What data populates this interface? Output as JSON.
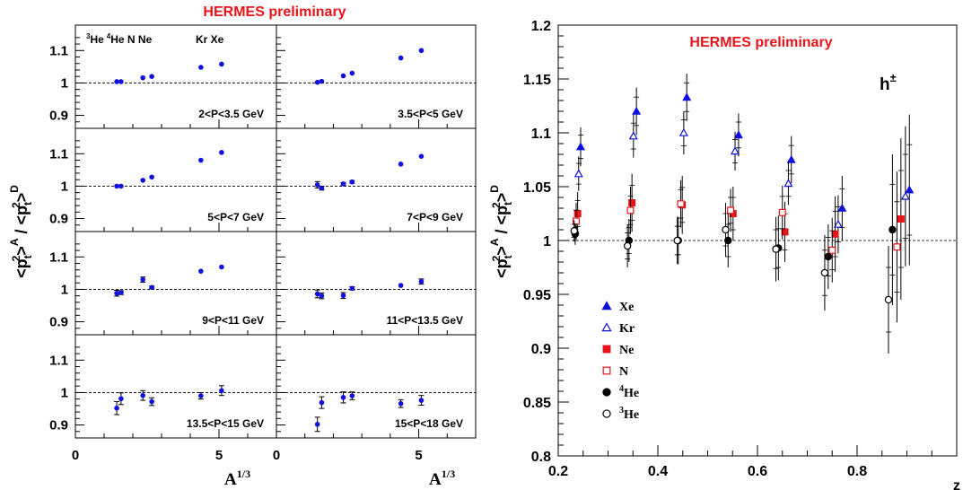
{
  "colors": {
    "prelim": "#e8141a",
    "blue": "#1010e0",
    "red": "#e8141a",
    "black": "#000000",
    "axis": "#000000"
  },
  "left": {
    "prelim_text": "HERMES preliminary",
    "nuclei_label": "Kr Xe",
    "nuclei_label_sup_3": "3",
    "nuclei_label_he3": "He",
    "nuclei_label_sup_4": "4",
    "nuclei_label_rest": "He N Ne",
    "ylabel_parts": [
      "<p",
      "t",
      "2",
      ">",
      "A",
      " / <p",
      "t",
      "2",
      ">",
      "D"
    ],
    "xlabel": "A",
    "xlabel_sup": "1/3",
    "xticks": [
      "0",
      "5"
    ],
    "yticks": [
      "0.9",
      "1",
      "1.1"
    ],
    "xlim": [
      0,
      7
    ],
    "ylim": [
      0.86,
      1.17
    ],
    "panels": [
      {
        "label": "2<P<3.5 GeV",
        "points": [
          [
            1.44,
            1.004,
            0
          ],
          [
            1.59,
            1.004,
            0
          ],
          [
            2.35,
            1.016,
            0
          ],
          [
            2.66,
            1.02,
            0
          ],
          [
            4.37,
            1.048,
            0
          ],
          [
            5.09,
            1.058,
            0
          ]
        ]
      },
      {
        "label": "3.5<P<5 GeV",
        "points": [
          [
            1.44,
            1.002,
            0
          ],
          [
            1.59,
            1.005,
            0
          ],
          [
            2.35,
            1.022,
            0
          ],
          [
            2.66,
            1.03,
            0
          ],
          [
            4.37,
            1.077,
            0
          ],
          [
            5.09,
            1.1,
            0
          ]
        ]
      },
      {
        "label": "5<P<7 GeV",
        "points": [
          [
            1.44,
            1.0,
            0
          ],
          [
            1.59,
            1.0,
            0
          ],
          [
            2.35,
            1.018,
            0
          ],
          [
            2.66,
            1.028,
            0
          ],
          [
            4.37,
            1.08,
            0
          ],
          [
            5.09,
            1.104,
            0
          ]
        ]
      },
      {
        "label": "7<P<9 GeV",
        "points": [
          [
            1.44,
            1.004,
            0.01
          ],
          [
            1.59,
            0.994,
            0.006
          ],
          [
            2.35,
            1.007,
            0.004
          ],
          [
            2.66,
            1.013,
            0.004
          ],
          [
            4.37,
            1.068,
            0
          ],
          [
            5.09,
            1.092,
            0
          ]
        ]
      },
      {
        "label": "9<P<11 GeV",
        "points": [
          [
            1.44,
            0.988,
            0.009
          ],
          [
            1.59,
            0.99,
            0.006
          ],
          [
            2.35,
            1.03,
            0.008
          ],
          [
            2.66,
            1.006,
            0.004
          ],
          [
            4.37,
            1.056,
            0
          ],
          [
            5.09,
            1.069,
            0
          ]
        ]
      },
      {
        "label": "11<P<13.5 GeV",
        "points": [
          [
            1.44,
            0.986,
            0.012
          ],
          [
            1.59,
            0.98,
            0.009
          ],
          [
            2.35,
            0.981,
            0.009
          ],
          [
            2.66,
            1.003,
            0.005
          ],
          [
            4.37,
            1.012,
            0
          ],
          [
            5.09,
            1.024,
            0.008
          ]
        ]
      },
      {
        "label": "13.5<P<15 GeV",
        "points": [
          [
            1.44,
            0.952,
            0.02
          ],
          [
            1.59,
            0.981,
            0.018
          ],
          [
            2.35,
            0.991,
            0.015
          ],
          [
            2.66,
            0.972,
            0.012
          ],
          [
            4.37,
            0.99,
            0.01
          ],
          [
            5.09,
            1.006,
            0.015
          ]
        ]
      },
      {
        "label": "15<P<18 GeV",
        "points": [
          [
            1.44,
            0.902,
            0.022
          ],
          [
            1.59,
            0.969,
            0.018
          ],
          [
            2.35,
            0.985,
            0.017
          ],
          [
            2.66,
            0.99,
            0.012
          ],
          [
            4.37,
            0.966,
            0.012
          ],
          [
            5.09,
            0.976,
            0.015
          ]
        ]
      }
    ]
  },
  "right": {
    "prelim_text": "HERMES preliminary",
    "hadron_label": "h",
    "hadron_sup": "±",
    "ylabel_parts": [
      "<p",
      "t",
      "2",
      ">",
      "A",
      " / <p",
      "t",
      "2",
      ">",
      "D"
    ],
    "xlabel": "z",
    "xticks": [
      "0.2",
      "0.4",
      "0.6",
      "0.8"
    ],
    "yticks": [
      "0.8",
      "0.85",
      "0.9",
      "0.95",
      "1",
      "1.05",
      "1.1",
      "1.15",
      "1.2"
    ],
    "legend": [
      {
        "name": "Xe",
        "marker": "tri-filled"
      },
      {
        "name": "Kr",
        "marker": "tri-open"
      },
      {
        "name": "Ne",
        "marker": "sq-filled"
      },
      {
        "name": "N",
        "marker": "sq-open"
      },
      {
        "name": "He",
        "sup": "4",
        "marker": "circ-filled"
      },
      {
        "name": "He",
        "sup": "3",
        "marker": "circ-open"
      }
    ]
  },
  "chart_data": [
    {
      "type": "scatter",
      "title": "HERMES preliminary",
      "xlabel": "A^1/3",
      "ylabel": "<pt^2>^A / <pt^2>^D",
      "xlim": [
        0,
        7
      ],
      "ylim": [
        0.86,
        1.17
      ],
      "note": "8 panels by hadron momentum P; x = A^(1/3) of He3, He4, N, Ne, Kr, Xe",
      "x": [
        1.44,
        1.59,
        2.35,
        2.66,
        4.37,
        5.09
      ],
      "panels": [
        "2<P<3.5 GeV",
        "3.5<P<5 GeV",
        "5<P<7 GeV",
        "7<P<9 GeV",
        "9<P<11 GeV",
        "11<P<13.5 GeV",
        "13.5<P<15 GeV",
        "15<P<18 GeV"
      ]
    },
    {
      "type": "scatter",
      "title": "HERMES preliminary",
      "xlabel": "z",
      "ylabel": "<pt^2>^A / <pt^2>^D",
      "xlim": [
        0.2,
        1.0
      ],
      "ylim": [
        0.8,
        1.2
      ],
      "grid": false,
      "legend_position": "left",
      "series": [
        {
          "name": "Xe",
          "x": [
            0.245,
            0.357,
            0.458,
            0.562,
            0.668,
            0.77,
            0.905
          ],
          "y": [
            1.087,
            1.12,
            1.133,
            1.098,
            1.075,
            1.03,
            1.047
          ],
          "err": [
            0.018,
            0.022,
            0.022,
            0.02,
            0.022,
            0.03,
            0.07
          ]
        },
        {
          "name": "Kr",
          "x": [
            0.241,
            0.351,
            0.452,
            0.555,
            0.662,
            0.762,
            0.897
          ],
          "y": [
            1.062,
            1.097,
            1.1,
            1.083,
            1.053,
            1.015,
            1.041
          ],
          "err": [
            0.016,
            0.02,
            0.02,
            0.018,
            0.02,
            0.027,
            0.065
          ]
        },
        {
          "name": "Ne",
          "x": [
            0.239,
            0.348,
            0.449,
            0.551,
            0.655,
            0.756,
            0.888
          ],
          "y": [
            1.025,
            1.035,
            1.033,
            1.025,
            1.008,
            1.006,
            1.02
          ],
          "err": [
            0.02,
            0.027,
            0.027,
            0.025,
            0.028,
            0.035,
            0.075
          ]
        },
        {
          "name": "N",
          "x": [
            0.236,
            0.345,
            0.446,
            0.546,
            0.65,
            0.75,
            0.88
          ],
          "y": [
            1.018,
            1.028,
            1.034,
            1.028,
            1.026,
            0.991,
            0.994
          ],
          "err": [
            0.017,
            0.022,
            0.022,
            0.02,
            0.025,
            0.03,
            0.07
          ]
        },
        {
          "name": "4He",
          "x": [
            0.234,
            0.342,
            0.441,
            0.541,
            0.642,
            0.742,
            0.871
          ],
          "y": [
            1.006,
            1.0,
            1.0,
            1.0,
            0.993,
            0.985,
            1.01
          ],
          "err": [
            0.01,
            0.02,
            0.022,
            0.025,
            0.03,
            0.03,
            0.07
          ]
        },
        {
          "name": "3He",
          "x": [
            0.232,
            0.339,
            0.439,
            0.536,
            0.637,
            0.735,
            0.863
          ],
          "y": [
            1.009,
            0.995,
            1.0,
            1.01,
            0.992,
            0.97,
            0.945
          ],
          "err": [
            0.01,
            0.02,
            0.022,
            0.025,
            0.03,
            0.035,
            0.05
          ]
        }
      ]
    }
  ]
}
